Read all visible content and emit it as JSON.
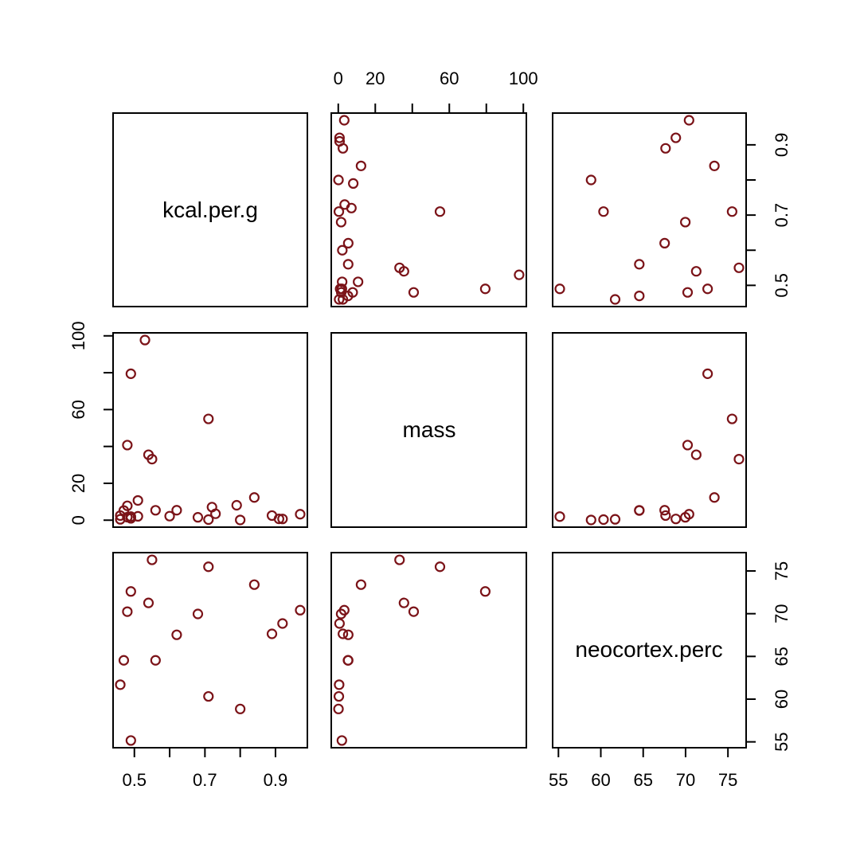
{
  "chart_data": {
    "type": "scatter-matrix",
    "variables": [
      "kcal.per.g",
      "mass",
      "neocortex.perc"
    ],
    "ranges": {
      "kcal.per.g": [
        0.46,
        0.97
      ],
      "mass": [
        0.12,
        97.72
      ],
      "neocortex.perc": [
        55.16,
        76.3
      ]
    },
    "ticks": {
      "kcal.per.g": {
        "at": [
          0.5,
          0.6,
          0.7,
          0.8,
          0.9
        ],
        "labels": [
          "0.5",
          "",
          "0.7",
          "",
          "0.9"
        ]
      },
      "mass": {
        "at": [
          0,
          20,
          40,
          60,
          80,
          100
        ],
        "labels": [
          "0",
          "20",
          "",
          "60",
          "",
          "100"
        ]
      },
      "neocortex.perc": {
        "at": [
          55,
          60,
          65,
          70,
          75
        ],
        "labels": [
          "55",
          "60",
          "65",
          "70",
          "75"
        ]
      }
    },
    "point_color": "#7b1318",
    "point_shape": "open-circle",
    "rows": [
      {
        "kcal.per.g": 0.49,
        "mass": 1.95,
        "neocortex.perc": 55.16
      },
      {
        "kcal.per.g": 0.51,
        "mass": 2.09,
        "neocortex.perc": null
      },
      {
        "kcal.per.g": 0.46,
        "mass": 2.51,
        "neocortex.perc": null
      },
      {
        "kcal.per.g": 0.48,
        "mass": 1.62,
        "neocortex.perc": null
      },
      {
        "kcal.per.g": 0.6,
        "mass": 2.19,
        "neocortex.perc": null
      },
      {
        "kcal.per.g": 0.47,
        "mass": 5.25,
        "neocortex.perc": 64.54
      },
      {
        "kcal.per.g": 0.56,
        "mass": 5.37,
        "neocortex.perc": 64.54
      },
      {
        "kcal.per.g": 0.89,
        "mass": 2.51,
        "neocortex.perc": 67.64
      },
      {
        "kcal.per.g": 0.91,
        "mass": 0.71,
        "neocortex.perc": null
      },
      {
        "kcal.per.g": 0.92,
        "mass": 0.68,
        "neocortex.perc": 68.85
      },
      {
        "kcal.per.g": 0.8,
        "mass": 0.12,
        "neocortex.perc": 58.85
      },
      {
        "kcal.per.g": 0.46,
        "mass": 0.47,
        "neocortex.perc": 61.69
      },
      {
        "kcal.per.g": 0.71,
        "mass": 0.32,
        "neocortex.perc": 60.32
      },
      {
        "kcal.per.g": 0.73,
        "mass": 3.47,
        "neocortex.perc": null
      },
      {
        "kcal.per.g": 0.68,
        "mass": 1.55,
        "neocortex.perc": 69.97
      },
      {
        "kcal.per.g": 0.72,
        "mass": 7.1,
        "neocortex.perc": null
      },
      {
        "kcal.per.g": 0.97,
        "mass": 3.24,
        "neocortex.perc": 70.41
      },
      {
        "kcal.per.g": 0.79,
        "mass": 8.1,
        "neocortex.perc": null
      },
      {
        "kcal.per.g": 0.84,
        "mass": 12.3,
        "neocortex.perc": 73.4
      },
      {
        "kcal.per.g": 0.48,
        "mass": 7.8,
        "neocortex.perc": null
      },
      {
        "kcal.per.g": 0.62,
        "mass": 5.4,
        "neocortex.perc": 67.53
      },
      {
        "kcal.per.g": 0.51,
        "mass": 10.7,
        "neocortex.perc": null
      },
      {
        "kcal.per.g": 0.54,
        "mass": 35.5,
        "neocortex.perc": 71.26
      },
      {
        "kcal.per.g": 0.49,
        "mass": 79.43,
        "neocortex.perc": 72.6
      },
      {
        "kcal.per.g": 0.48,
        "mass": 40.74,
        "neocortex.perc": 70.24
      },
      {
        "kcal.per.g": 0.53,
        "mass": 97.72,
        "neocortex.perc": null
      },
      {
        "kcal.per.g": 0.55,
        "mass": 33.11,
        "neocortex.perc": 76.3
      },
      {
        "kcal.per.g": 0.71,
        "mass": 54.95,
        "neocortex.perc": 75.49
      },
      {
        "kcal.per.g": 0.49,
        "mass": 1.0,
        "neocortex.perc": null
      }
    ]
  }
}
